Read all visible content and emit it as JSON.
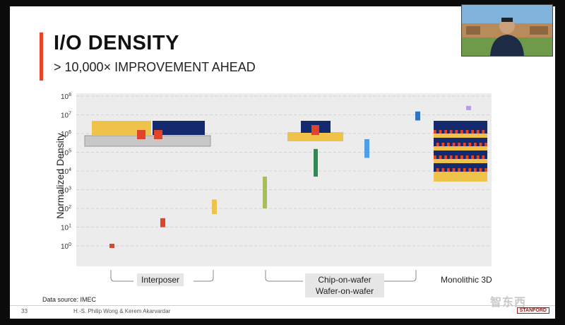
{
  "slide": {
    "title": "I/O DENSITY",
    "subtitle": "> 10,000× IMPROVEMENT AHEAD",
    "y_axis_label": "Normalized Density",
    "data_source": "Data source: IMEC",
    "page_number": "33",
    "authors": "H.-S. Philip Wong & Kerem Akarvardar",
    "logo_text": "STANFORD",
    "watermark": "智东西"
  },
  "groups": {
    "interposer": "Interposer",
    "chip_line1": "Chip-on-wafer",
    "chip_line2": "Wafer-on-wafer",
    "monolithic": "Monolithic 3D"
  },
  "colors": {
    "accent": "#e8442e",
    "red": "#e0442a",
    "yellow": "#efc24a",
    "green": "#a6bf5a",
    "darkgreen": "#2e8b57",
    "blue": "#4f9fe6",
    "navy": "#142a6e",
    "orange": "#f0a030",
    "lavender": "#b6a0e0",
    "gray": "#c8c8c8"
  },
  "chart_data": {
    "type": "scatter",
    "title": "",
    "ylabel": "Normalized Density",
    "yscale": "log10",
    "ylim": [
      1,
      100000000
    ],
    "y_ticks": [
      "10^0",
      "10^1",
      "10^2",
      "10^3",
      "10^4",
      "10^5",
      "10^6",
      "10^7",
      "10^8"
    ],
    "categories": [
      "Interposer",
      "Chip-on-wafer / Wafer-on-wafer",
      "Monolithic 3D"
    ],
    "ranges": [
      {
        "name": "interposer-a",
        "ymin": 1.0,
        "ymax": 1.3,
        "color": "#e0442a"
      },
      {
        "name": "interposer-b",
        "ymin": 10,
        "ymax": 30,
        "color": "#e0442a"
      },
      {
        "name": "interposer-c",
        "ymin": 50,
        "ymax": 300,
        "color": "#efc24a"
      },
      {
        "name": "chip-on-wafer-a",
        "ymin": 100,
        "ymax": 5000,
        "color": "#a6bf5a"
      },
      {
        "name": "chip-on-wafer-b",
        "ymin": 5000,
        "ymax": 150000,
        "color": "#2e8b57"
      },
      {
        "name": "wafer-on-wafer",
        "ymin": 50000,
        "ymax": 500000,
        "color": "#4f9fe6"
      },
      {
        "name": "wafer-on-wafer-fine",
        "ymin": 5000000,
        "ymax": 15000000,
        "color": "#2f72c8"
      },
      {
        "name": "monolithic-3d",
        "ymin": 20000000,
        "ymax": 30000000,
        "color": "#b6a0e0"
      }
    ]
  }
}
